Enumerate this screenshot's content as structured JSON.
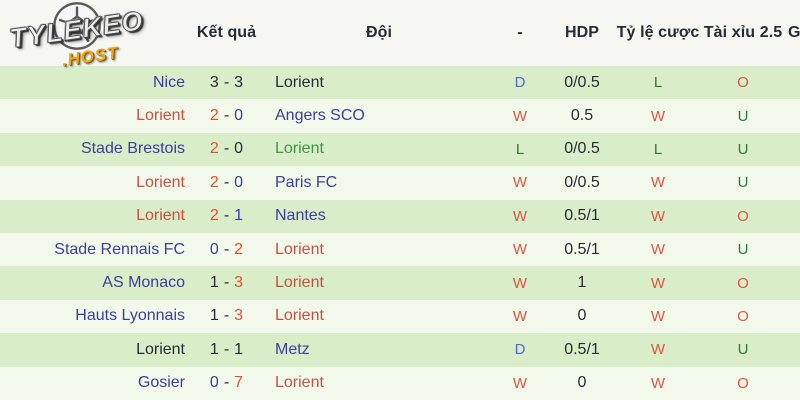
{
  "logo": {
    "title": "TYLEKEO",
    "subtitle": ".HOST",
    "ball_icon": "soccer-ball"
  },
  "header": {
    "columns": [
      "",
      "Kết quả",
      "Đội",
      "-",
      "HDP",
      "Tỷ lệ cược",
      "Tài xỉu 2.5",
      "G"
    ]
  },
  "colors": {
    "team_navy": "#3b3f9d",
    "team_red": "#c74f46",
    "team_green": "#3c9a43",
    "team_dark": "#272c34",
    "score_red": "#e2512e",
    "letter_red": "#e05443",
    "letter_green": "#2f7a37",
    "letter_blue": "#4c6cd2",
    "row_odd_bg": "#d9edc9",
    "row_even_bg": "#f2f9ea",
    "header_bg": "#f6f6f3",
    "logo_gold": "#eba81f"
  },
  "table": {
    "rows": [
      {
        "home": [
          "Nice",
          "navy"
        ],
        "score_home": [
          "3",
          "dark"
        ],
        "score_away": [
          "3",
          "dark"
        ],
        "away": [
          "Lorient",
          "dark"
        ],
        "result": [
          "D",
          "blue"
        ],
        "hdp": "0/0.5",
        "odds": [
          "L",
          "dgreen"
        ],
        "over_under": [
          "O",
          "red2"
        ]
      },
      {
        "home": [
          "Lorient",
          "red"
        ],
        "score_home": [
          "2",
          "orange"
        ],
        "score_away": [
          "0",
          "navy"
        ],
        "away": [
          "Angers SCO",
          "navy"
        ],
        "result": [
          "W",
          "red2"
        ],
        "hdp": "0.5",
        "odds": [
          "W",
          "red2"
        ],
        "over_under": [
          "U",
          "dgreen"
        ]
      },
      {
        "home": [
          "Stade Brestois",
          "navy"
        ],
        "score_home": [
          "2",
          "orange"
        ],
        "score_away": [
          "0",
          "dark"
        ],
        "away": [
          "Lorient",
          "green"
        ],
        "result": [
          "L",
          "dgreen"
        ],
        "hdp": "0/0.5",
        "odds": [
          "L",
          "dgreen"
        ],
        "over_under": [
          "U",
          "dgreen"
        ]
      },
      {
        "home": [
          "Lorient",
          "red"
        ],
        "score_home": [
          "2",
          "orange"
        ],
        "score_away": [
          "0",
          "navy"
        ],
        "away": [
          "Paris FC",
          "navy"
        ],
        "result": [
          "W",
          "red2"
        ],
        "hdp": "0/0.5",
        "odds": [
          "W",
          "red2"
        ],
        "over_under": [
          "U",
          "dgreen"
        ]
      },
      {
        "home": [
          "Lorient",
          "red"
        ],
        "score_home": [
          "2",
          "orange"
        ],
        "score_away": [
          "1",
          "navy"
        ],
        "away": [
          "Nantes",
          "navy"
        ],
        "result": [
          "W",
          "red2"
        ],
        "hdp": "0.5/1",
        "odds": [
          "W",
          "red2"
        ],
        "over_under": [
          "O",
          "red2"
        ]
      },
      {
        "home": [
          "Stade Rennais FC",
          "navy"
        ],
        "score_home": [
          "0",
          "navy"
        ],
        "score_away": [
          "2",
          "orange"
        ],
        "away": [
          "Lorient",
          "red"
        ],
        "result": [
          "W",
          "red2"
        ],
        "hdp": "0.5/1",
        "odds": [
          "W",
          "red2"
        ],
        "over_under": [
          "U",
          "dgreen"
        ]
      },
      {
        "home": [
          "AS Monaco",
          "navy"
        ],
        "score_home": [
          "1",
          "dark"
        ],
        "score_away": [
          "3",
          "orange"
        ],
        "away": [
          "Lorient",
          "red"
        ],
        "result": [
          "W",
          "red2"
        ],
        "hdp": "1",
        "odds": [
          "W",
          "red2"
        ],
        "over_under": [
          "O",
          "red2"
        ]
      },
      {
        "home": [
          "Hauts Lyonnais",
          "navy"
        ],
        "score_home": [
          "1",
          "dark"
        ],
        "score_away": [
          "3",
          "orange"
        ],
        "away": [
          "Lorient",
          "red"
        ],
        "result": [
          "W",
          "red2"
        ],
        "hdp": "0",
        "odds": [
          "W",
          "red2"
        ],
        "over_under": [
          "O",
          "red2"
        ]
      },
      {
        "home": [
          "Lorient",
          "dark"
        ],
        "score_home": [
          "1",
          "dark"
        ],
        "score_away": [
          "1",
          "dark"
        ],
        "away": [
          "Metz",
          "navy"
        ],
        "result": [
          "D",
          "blue"
        ],
        "hdp": "0.5/1",
        "odds": [
          "W",
          "red2"
        ],
        "over_under": [
          "U",
          "dgreen"
        ]
      },
      {
        "home": [
          "Gosier",
          "navy"
        ],
        "score_home": [
          "0",
          "navy"
        ],
        "score_away": [
          "7",
          "orange"
        ],
        "away": [
          "Lorient",
          "red"
        ],
        "result": [
          "W",
          "red2"
        ],
        "hdp": "0",
        "odds": [
          "W",
          "red2"
        ],
        "over_under": [
          "O",
          "red2"
        ]
      }
    ]
  }
}
